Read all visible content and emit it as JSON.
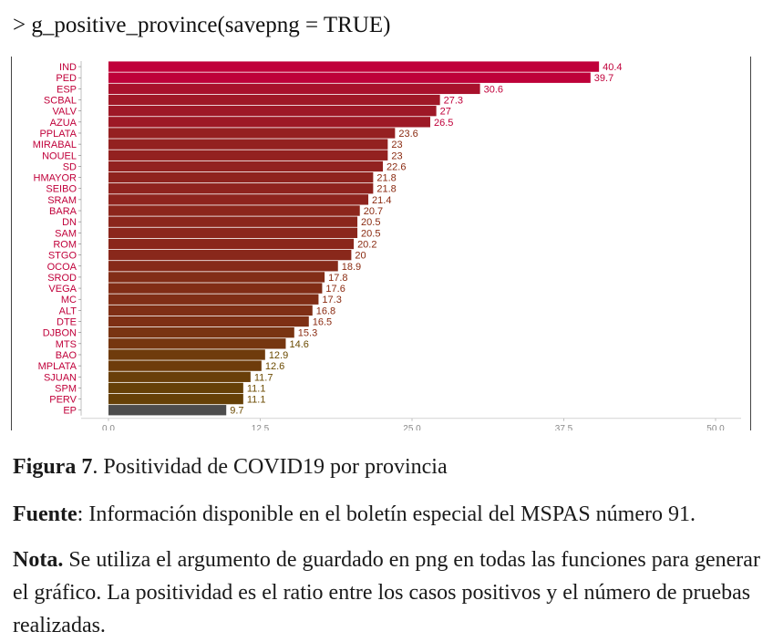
{
  "code_line": "> g_positive_province(savepng = TRUE)",
  "captions": {
    "figure_label": "Figura 7",
    "figure_text": ". Positividad de COVID19 por provincia",
    "source_label": "Fuente",
    "source_text": ": Información disponible en el boletín especial del MSPAS número 91.",
    "note_label": "Nota.",
    "note_text": " Se utiliza el argumento de guardado en png en todas las funciones para generar el gráfico. La positividad es el ratio entre los casos positivos y el número de pruebas realizadas."
  },
  "colors": {
    "high": "#c0003a",
    "low": "#5a4a00",
    "min_bar": "#4d4d4d",
    "label": "#c0003a",
    "label_low": "#6b4a00"
  },
  "chart_data": {
    "type": "bar",
    "orientation": "horizontal",
    "categories": [
      "IND",
      "PED",
      "ESP",
      "SCBAL",
      "VALV",
      "AZUA",
      "PPLATA",
      "MIRABAL",
      "NOUEL",
      "SD",
      "HMAYOR",
      "SEIBO",
      "SRAM",
      "BARA",
      "DN",
      "SAM",
      "ROM",
      "STGO",
      "OCOA",
      "SROD",
      "VEGA",
      "MC",
      "ALT",
      "DTE",
      "DJBON",
      "MTS",
      "BAO",
      "MPLATA",
      "SJUAN",
      "SPM",
      "PERV",
      "EP"
    ],
    "values": [
      40.4,
      39.7,
      30.6,
      27.3,
      27,
      26.5,
      23.6,
      23,
      23,
      22.6,
      21.8,
      21.8,
      21.4,
      20.7,
      20.5,
      20.5,
      20.2,
      20,
      18.9,
      17.8,
      17.6,
      17.3,
      16.8,
      16.5,
      15.3,
      14.6,
      12.9,
      12.6,
      11.7,
      11.1,
      11.1,
      9.7
    ],
    "value_labels": [
      "40.4",
      "39.7",
      "30.6",
      "27.3",
      "27",
      "26.5",
      "23.6",
      "23",
      "23",
      "22.6",
      "21.8",
      "21.8",
      "21.4",
      "20.7",
      "20.5",
      "20.5",
      "20.2",
      "20",
      "18.9",
      "17.8",
      "17.6",
      "17.3",
      "16.8",
      "16.5",
      "15.3",
      "14.6",
      "12.9",
      "12.6",
      "11.7",
      "11.1",
      "11.1",
      "9.7"
    ],
    "xlabel": "%",
    "ylabel": "",
    "xlim": [
      0,
      50
    ],
    "xticks": [
      0,
      12.5,
      25,
      37.5,
      50
    ],
    "xtick_labels": [
      "0.0",
      "12.5",
      "25.0",
      "37.5",
      "50.0"
    ],
    "grid": false
  }
}
